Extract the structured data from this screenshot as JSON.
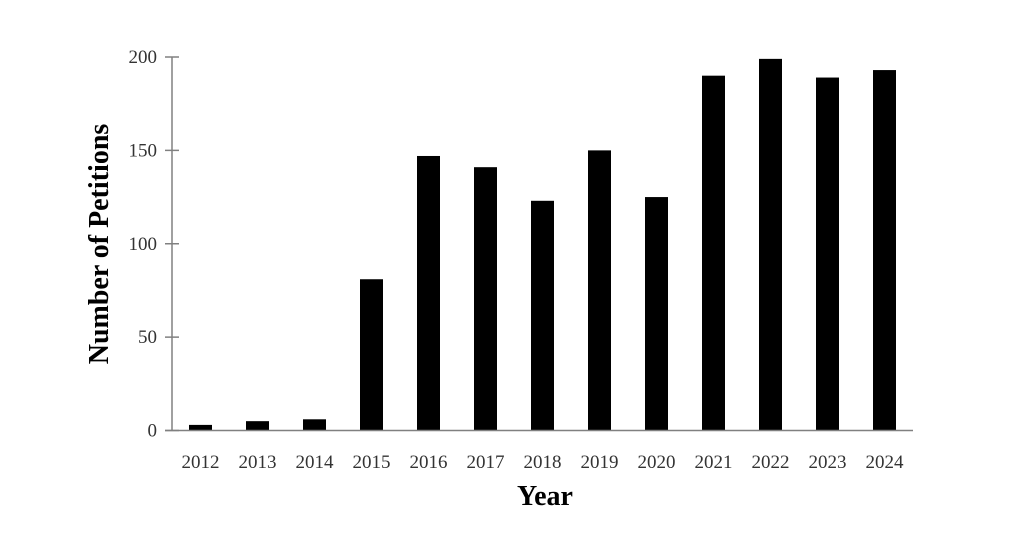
{
  "chart_data": {
    "type": "bar",
    "title": "",
    "xlabel": "Year",
    "ylabel": "Number of Petitions",
    "categories": [
      "2012",
      "2013",
      "2014",
      "2015",
      "2016",
      "2017",
      "2018",
      "2019",
      "2020",
      "2021",
      "2022",
      "2023",
      "2024"
    ],
    "values": [
      3,
      5,
      6,
      81,
      147,
      141,
      123,
      150,
      125,
      190,
      199,
      189,
      193
    ],
    "ylim": [
      0,
      200
    ],
    "yticks": [
      "0",
      "50",
      "100",
      "150",
      "200"
    ],
    "grid": false,
    "legend": "none",
    "bar_color": "#000000",
    "axis_color": "#808080"
  }
}
